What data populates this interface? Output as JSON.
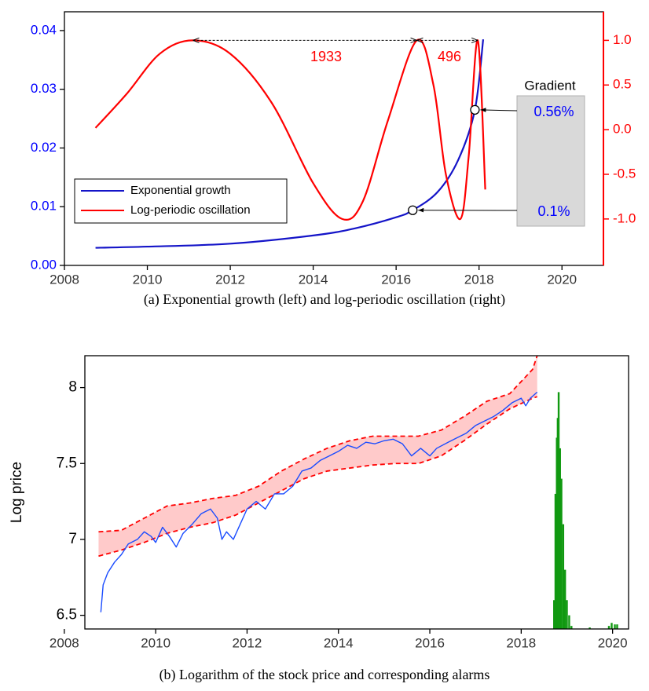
{
  "chart_data": [
    {
      "type": "line",
      "caption": "(a) Exponential growth (left) and log-periodic oscillation (right)",
      "xlim": [
        2008,
        2021
      ],
      "xticks": [
        2008,
        2010,
        2012,
        2014,
        2016,
        2018,
        2020
      ],
      "ylim": [
        0,
        0.0432
      ],
      "yticks": [
        {
          "value": 0,
          "label": "0.00"
        },
        0.01,
        0.02,
        0.03,
        0.04
      ],
      "ytick_color": "#0000ff",
      "y2lim": [
        -1.52,
        1.32
      ],
      "y2ticks": [
        {
          "value": -1,
          "label": "-1.0"
        },
        -0.5,
        {
          "value": 0,
          "label": "0.0"
        },
        0.5,
        {
          "value": 1,
          "label": "1.0"
        }
      ],
      "y2tick_color": "#ff0000",
      "legend": "lower left",
      "series": [
        {
          "name": "Exponential growth",
          "color": "#1414c8",
          "x": [
            2008.75,
            2010,
            2012,
            2014,
            2015,
            2016,
            2016.4,
            2017,
            2017.5,
            2017.9,
            2018.1
          ],
          "values": [
            0.003,
            0.0032,
            0.0037,
            0.0051,
            0.0063,
            0.0082,
            0.0094,
            0.0125,
            0.018,
            0.0265,
            0.0385
          ]
        },
        {
          "name": "Log-periodic oscillation",
          "color": "#ff0000",
          "axis": "y2",
          "x": [
            2008.75,
            2009.5,
            2010.3,
            2011.1,
            2012,
            2013,
            2014,
            2014.7,
            2015.2,
            2015.8,
            2016.5,
            2016.9,
            2017.2,
            2017.55,
            2017.75,
            2017.97,
            2018.15
          ],
          "values": [
            0.02,
            0.4,
            0.85,
            1.0,
            0.85,
            0.3,
            -0.6,
            -1.0,
            -0.8,
            0.1,
            1.0,
            0.5,
            -0.5,
            -1.0,
            -0.3,
            1.0,
            -0.67
          ]
        }
      ],
      "annotations": [
        "1933",
        "496",
        "Gradient",
        "0.56%",
        "0.1%"
      ]
    },
    {
      "type": "line",
      "caption": "(b) Logarithm of the stock price and corresponding alarms",
      "ylabel": "Log price",
      "xlim": [
        2008.45,
        2020.35
      ],
      "xticks": [
        2008,
        2010,
        2012,
        2014,
        2016,
        2018,
        2020
      ],
      "ylim": [
        6.41,
        8.21
      ],
      "yticks": [
        6.5,
        7,
        7.5,
        8
      ],
      "band": {
        "color": "#ff0000",
        "fill": "#ffcaca",
        "x": [
          2008.75,
          2009.25,
          2009.75,
          2010.25,
          2010.75,
          2011.25,
          2011.75,
          2012.25,
          2012.75,
          2013.25,
          2013.75,
          2014.25,
          2014.75,
          2015.25,
          2015.75,
          2016.25,
          2016.75,
          2017.25,
          2017.75,
          2018.25,
          2018.35
        ],
        "upper": [
          7.05,
          7.06,
          7.14,
          7.22,
          7.24,
          7.27,
          7.29,
          7.35,
          7.45,
          7.53,
          7.6,
          7.65,
          7.68,
          7.68,
          7.68,
          7.72,
          7.81,
          7.91,
          7.96,
          8.12,
          8.21
        ],
        "lower": [
          6.89,
          6.93,
          6.98,
          7.04,
          7.08,
          7.11,
          7.16,
          7.24,
          7.32,
          7.4,
          7.45,
          7.47,
          7.49,
          7.5,
          7.5,
          7.55,
          7.65,
          7.76,
          7.86,
          7.93,
          7.94
        ]
      },
      "series": [
        {
          "color": "#1a4cff",
          "x": [
            2008.8,
            2008.85,
            2008.95,
            2009.1,
            2009.25,
            2009.4,
            2009.6,
            2009.75,
            2009.9,
            2010.0,
            2010.15,
            2010.3,
            2010.45,
            2010.6,
            2010.8,
            2011.0,
            2011.2,
            2011.35,
            2011.45,
            2011.55,
            2011.7,
            2011.85,
            2012.0,
            2012.2,
            2012.4,
            2012.6,
            2012.8,
            2013.0,
            2013.2,
            2013.4,
            2013.6,
            2013.8,
            2014.0,
            2014.2,
            2014.4,
            2014.6,
            2014.8,
            2015.0,
            2015.2,
            2015.4,
            2015.6,
            2015.8,
            2016.0,
            2016.15,
            2016.4,
            2016.6,
            2016.8,
            2017.0,
            2017.2,
            2017.4,
            2017.6,
            2017.8,
            2018.0,
            2018.1,
            2018.2,
            2018.35
          ],
          "values": [
            6.52,
            6.7,
            6.78,
            6.85,
            6.9,
            6.97,
            7.0,
            7.05,
            7.02,
            6.98,
            7.08,
            7.02,
            6.95,
            7.04,
            7.1,
            7.17,
            7.2,
            7.14,
            7.0,
            7.05,
            7.0,
            7.1,
            7.2,
            7.25,
            7.2,
            7.3,
            7.3,
            7.35,
            7.45,
            7.47,
            7.52,
            7.55,
            7.58,
            7.62,
            7.6,
            7.64,
            7.63,
            7.65,
            7.66,
            7.63,
            7.55,
            7.6,
            7.55,
            7.6,
            7.64,
            7.67,
            7.7,
            7.75,
            7.78,
            7.81,
            7.85,
            7.9,
            7.93,
            7.88,
            7.93,
            7.97
          ]
        }
      ],
      "alarms": {
        "color": "#119911",
        "x": [
          2018.72,
          2018.75,
          2018.78,
          2018.8,
          2018.82,
          2018.85,
          2018.88,
          2018.92,
          2018.96,
          2019.0,
          2019.05,
          2019.1,
          2019.5,
          2019.92,
          2019.98,
          2020.05,
          2020.1
        ],
        "values": [
          6.6,
          7.3,
          7.67,
          7.8,
          7.97,
          7.6,
          7.4,
          7.1,
          6.8,
          6.6,
          6.5,
          6.43,
          6.42,
          6.43,
          6.45,
          6.44,
          6.44
        ]
      }
    }
  ]
}
